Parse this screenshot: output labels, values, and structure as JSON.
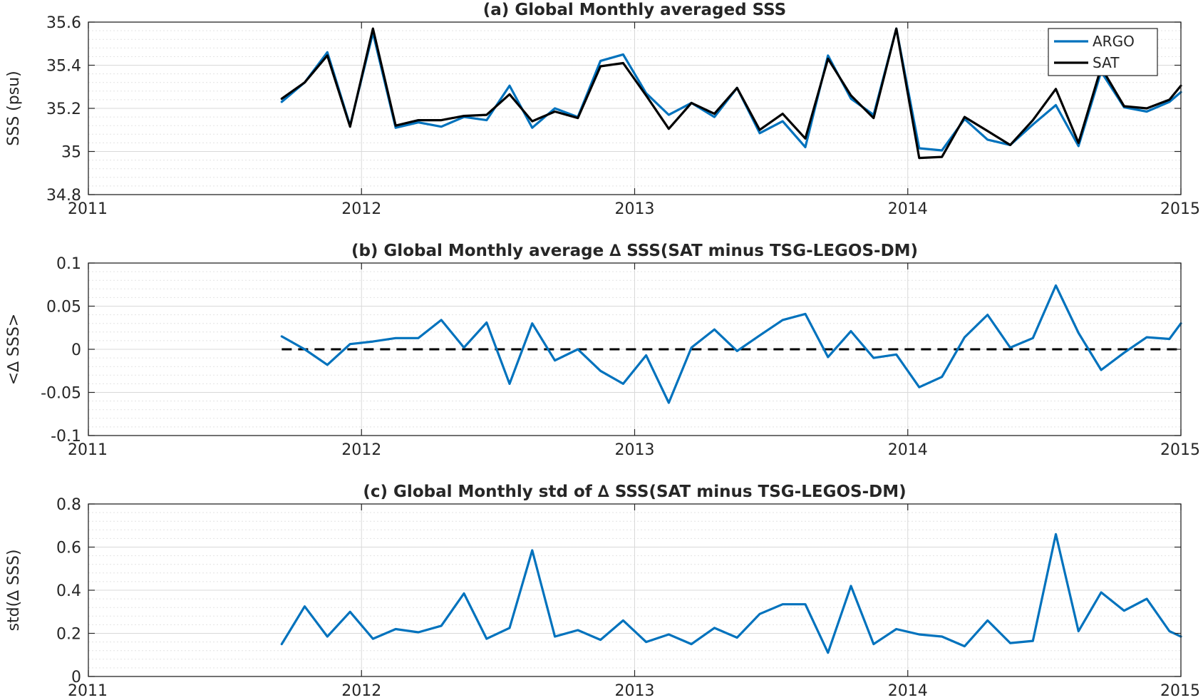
{
  "colors": {
    "argo": "#0072BD",
    "sat": "#000000",
    "delta": "#0072BD",
    "zero_line": "#000000",
    "axis": "#262626",
    "grid": "#d9d9d9"
  },
  "chart_data": [
    {
      "type": "line",
      "title": "(a) Global Monthly averaged SSS",
      "ylabel": "SSS (psu)",
      "xlim": [
        2011,
        2015
      ],
      "ylim": [
        34.8,
        35.6
      ],
      "xticks": [
        2011,
        2012,
        2013,
        2014,
        2015
      ],
      "xtick_labels": [
        "2011",
        "2012",
        "2013",
        "2014",
        "2015"
      ],
      "yticks": [
        34.8,
        35,
        35.2,
        35.4,
        35.6
      ],
      "ytick_labels": [
        "34.8",
        "35",
        "35.2",
        "35.4",
        "35.6"
      ],
      "grid": true,
      "legend": "top-right",
      "x": [
        2011.708,
        2011.792,
        2011.875,
        2011.958,
        2012.042,
        2012.125,
        2012.208,
        2012.292,
        2012.375,
        2012.458,
        2012.542,
        2012.625,
        2012.708,
        2012.792,
        2012.875,
        2012.958,
        2013.042,
        2013.125,
        2013.208,
        2013.292,
        2013.375,
        2013.458,
        2013.542,
        2013.625,
        2013.708,
        2013.792,
        2013.875,
        2013.958,
        2014.042,
        2014.125,
        2014.208,
        2014.292,
        2014.375,
        2014.458,
        2014.542,
        2014.625,
        2014.708,
        2014.792,
        2014.875,
        2014.958,
        2015.0
      ],
      "series": [
        {
          "name": "ARGO",
          "values": [
            35.23,
            35.32,
            35.46,
            35.12,
            35.55,
            35.11,
            35.135,
            35.115,
            35.16,
            35.145,
            35.305,
            35.11,
            35.2,
            35.16,
            35.42,
            35.45,
            35.27,
            35.17,
            35.225,
            35.16,
            35.295,
            35.085,
            35.14,
            35.02,
            35.445,
            35.245,
            35.17,
            35.57,
            35.015,
            35.005,
            35.15,
            35.055,
            35.03,
            35.125,
            35.215,
            35.025,
            35.37,
            35.205,
            35.185,
            35.23,
            35.275
          ]
        },
        {
          "name": "SAT",
          "values": [
            35.245,
            35.32,
            35.445,
            35.115,
            35.57,
            35.12,
            35.145,
            35.145,
            35.165,
            35.17,
            35.265,
            35.14,
            35.185,
            35.155,
            35.395,
            35.41,
            35.26,
            35.105,
            35.225,
            35.175,
            35.295,
            35.1,
            35.175,
            35.06,
            35.43,
            35.26,
            35.155,
            35.57,
            34.97,
            34.975,
            35.16,
            35.095,
            35.03,
            35.145,
            35.29,
            35.04,
            35.39,
            35.21,
            35.2,
            35.24,
            35.305
          ]
        }
      ]
    },
    {
      "type": "line",
      "title": "(b) Global Monthly average ∆ SSS(SAT minus TSG-LEGOS-DM)",
      "ylabel": "<∆ SSS>",
      "xlim": [
        2011,
        2015
      ],
      "ylim": [
        -0.1,
        0.1
      ],
      "xticks": [
        2011,
        2012,
        2013,
        2014,
        2015
      ],
      "xtick_labels": [
        "2011",
        "2012",
        "2013",
        "2014",
        "2015"
      ],
      "yticks": [
        -0.1,
        -0.05,
        0,
        0.05,
        0.1
      ],
      "ytick_labels": [
        "-0.1",
        "-0.05",
        "0",
        "0.05",
        "0.1"
      ],
      "grid": true,
      "reference_line": 0,
      "x": [
        2011.708,
        2011.792,
        2011.875,
        2011.958,
        2012.042,
        2012.125,
        2012.208,
        2012.292,
        2012.375,
        2012.458,
        2012.542,
        2012.625,
        2012.708,
        2012.792,
        2012.875,
        2012.958,
        2013.042,
        2013.125,
        2013.208,
        2013.292,
        2013.375,
        2013.458,
        2013.542,
        2013.625,
        2013.708,
        2013.792,
        2013.875,
        2013.958,
        2014.042,
        2014.125,
        2014.208,
        2014.292,
        2014.375,
        2014.458,
        2014.542,
        2014.625,
        2014.708,
        2014.792,
        2014.875,
        2014.958,
        2015.0
      ],
      "series": [
        {
          "values": [
            0.015,
            0.0,
            -0.018,
            0.006,
            0.009,
            0.013,
            0.013,
            0.034,
            0.002,
            0.031,
            -0.04,
            0.03,
            -0.013,
            0.0,
            -0.025,
            -0.04,
            -0.007,
            -0.062,
            0.002,
            0.023,
            -0.002,
            0.016,
            0.034,
            0.041,
            -0.009,
            0.021,
            -0.01,
            -0.006,
            -0.044,
            -0.032,
            0.014,
            0.04,
            0.002,
            0.013,
            0.074,
            0.019,
            -0.024,
            -0.004,
            0.014,
            0.012,
            0.03
          ]
        }
      ]
    },
    {
      "type": "line",
      "title": "(c) Global Monthly std of ∆ SSS(SAT minus TSG-LEGOS-DM)",
      "ylabel": "std(∆ SSS)",
      "xlim": [
        2011,
        2015
      ],
      "ylim": [
        0,
        0.8
      ],
      "xticks": [
        2011,
        2012,
        2013,
        2014,
        2015
      ],
      "xtick_labels": [
        "2011",
        "2012",
        "2013",
        "2014",
        "2015"
      ],
      "yticks": [
        0,
        0.2,
        0.4,
        0.6,
        0.8
      ],
      "ytick_labels": [
        "0",
        "0.2",
        "0.4",
        "0.6",
        "0.8"
      ],
      "grid": true,
      "x": [
        2011.708,
        2011.792,
        2011.875,
        2011.958,
        2012.042,
        2012.125,
        2012.208,
        2012.292,
        2012.375,
        2012.458,
        2012.542,
        2012.625,
        2012.708,
        2012.792,
        2012.875,
        2012.958,
        2013.042,
        2013.125,
        2013.208,
        2013.292,
        2013.375,
        2013.458,
        2013.542,
        2013.625,
        2013.708,
        2013.792,
        2013.875,
        2013.958,
        2014.042,
        2014.125,
        2014.208,
        2014.292,
        2014.375,
        2014.458,
        2014.542,
        2014.625,
        2014.708,
        2014.792,
        2014.875,
        2014.958,
        2015.0
      ],
      "series": [
        {
          "values": [
            0.15,
            0.325,
            0.185,
            0.3,
            0.175,
            0.22,
            0.205,
            0.235,
            0.385,
            0.175,
            0.225,
            0.585,
            0.185,
            0.215,
            0.17,
            0.26,
            0.16,
            0.195,
            0.15,
            0.225,
            0.18,
            0.29,
            0.335,
            0.335,
            0.11,
            0.42,
            0.15,
            0.22,
            0.195,
            0.185,
            0.14,
            0.26,
            0.155,
            0.165,
            0.66,
            0.21,
            0.39,
            0.305,
            0.36,
            0.21,
            0.185
          ]
        }
      ]
    }
  ]
}
